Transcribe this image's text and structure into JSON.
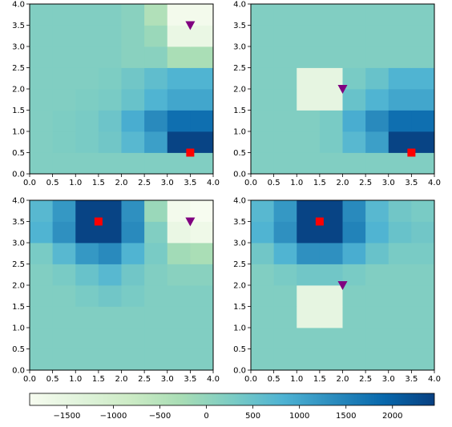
{
  "chart_data": {
    "type": "heatmap",
    "colormap": "GnBu",
    "colorbar": {
      "orientation": "horizontal",
      "range": [
        -1900,
        2450
      ],
      "ticks": [
        -1500,
        -1000,
        -500,
        0,
        500,
        1000,
        1500,
        2000
      ],
      "tick_labels": [
        "−1500",
        "−1000",
        "−500",
        "0",
        "500",
        "1000",
        "1500",
        "2000"
      ]
    },
    "axis": {
      "xlim": [
        0,
        4
      ],
      "ylim": [
        0,
        4
      ],
      "ticks": [
        0,
        0.5,
        1,
        1.5,
        2,
        2.5,
        3,
        3.5,
        4
      ],
      "tick_labels": [
        "0.0",
        "0.5",
        "1.0",
        "1.5",
        "2.0",
        "2.5",
        "3.0",
        "3.5",
        "4.0"
      ]
    },
    "cell_size": 0.5,
    "marker_legend": {
      "square": {
        "color": "#ff0000",
        "shape": "square"
      },
      "triangle": {
        "color": "#800080",
        "shape": "triangle-down"
      }
    },
    "panels": [
      {
        "grid": [
          [
            200,
            200,
            200,
            200,
            200,
            200,
            200,
            200
          ],
          [
            200,
            250,
            300,
            400,
            700,
            1100,
            2400,
            2400
          ],
          [
            200,
            250,
            300,
            450,
            900,
            1400,
            1800,
            1800
          ],
          [
            200,
            200,
            250,
            300,
            500,
            800,
            1000,
            1000
          ],
          [
            200,
            200,
            200,
            250,
            400,
            600,
            800,
            800
          ],
          [
            200,
            200,
            200,
            200,
            100,
            100,
            -300,
            -300
          ],
          [
            200,
            200,
            200,
            200,
            100,
            -100,
            -1600,
            -1600
          ],
          [
            200,
            200,
            200,
            200,
            100,
            -400,
            -1800,
            -1800
          ]
        ],
        "square": [
          3.5,
          0.5
        ],
        "triangle": [
          3.5,
          3.5
        ]
      },
      {
        "grid": [
          [
            200,
            200,
            200,
            200,
            200,
            200,
            200,
            200
          ],
          [
            200,
            200,
            200,
            300,
            700,
            1100,
            2400,
            2400
          ],
          [
            200,
            200,
            200,
            300,
            900,
            1400,
            1800,
            1800
          ],
          [
            200,
            200,
            -1500,
            -1500,
            500,
            800,
            1000,
            1000
          ],
          [
            200,
            200,
            -1500,
            -1500,
            300,
            500,
            800,
            800
          ],
          [
            200,
            200,
            200,
            200,
            200,
            200,
            200,
            200
          ],
          [
            200,
            200,
            200,
            200,
            200,
            200,
            200,
            200
          ],
          [
            200,
            200,
            200,
            200,
            200,
            200,
            200,
            200
          ]
        ],
        "square": [
          3.5,
          0.5
        ],
        "triangle": [
          2.0,
          2.0
        ]
      },
      {
        "grid": [
          [
            200,
            200,
            200,
            200,
            200,
            200,
            200,
            200
          ],
          [
            200,
            200,
            200,
            200,
            200,
            200,
            200,
            200
          ],
          [
            200,
            200,
            200,
            200,
            200,
            200,
            200,
            200
          ],
          [
            200,
            200,
            300,
            400,
            300,
            200,
            200,
            200
          ],
          [
            200,
            300,
            500,
            700,
            400,
            200,
            100,
            100
          ],
          [
            300,
            700,
            1200,
            1400,
            800,
            300,
            -200,
            -300
          ],
          [
            800,
            1300,
            2400,
            2400,
            1400,
            200,
            -1600,
            -1700
          ],
          [
            700,
            1200,
            2400,
            2400,
            1300,
            -100,
            -1800,
            -1900
          ]
        ],
        "square": [
          1.5,
          3.5
        ],
        "triangle": [
          3.5,
          3.5
        ]
      },
      {
        "grid": [
          [
            200,
            200,
            200,
            200,
            200,
            200,
            200,
            200
          ],
          [
            200,
            200,
            200,
            200,
            200,
            200,
            200,
            200
          ],
          [
            200,
            200,
            -1500,
            -1500,
            200,
            200,
            200,
            200
          ],
          [
            200,
            200,
            -1500,
            -1500,
            200,
            200,
            200,
            200
          ],
          [
            200,
            300,
            400,
            400,
            300,
            200,
            200,
            200
          ],
          [
            400,
            800,
            1300,
            1300,
            900,
            500,
            300,
            300
          ],
          [
            800,
            1300,
            2400,
            2400,
            1500,
            800,
            500,
            400
          ],
          [
            700,
            1200,
            2400,
            2400,
            1400,
            700,
            400,
            300
          ]
        ],
        "square": [
          1.5,
          3.5
        ],
        "triangle": [
          2.0,
          2.0
        ]
      }
    ]
  }
}
